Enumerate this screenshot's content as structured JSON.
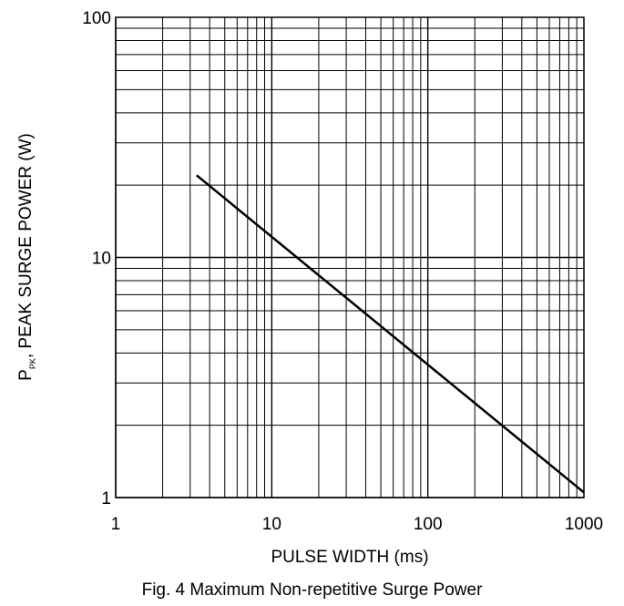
{
  "chart_data": {
    "type": "line",
    "title": "",
    "caption": "Fig. 4 Maximum Non-repetitive Surge Power",
    "xlabel": "PULSE WIDTH (ms)",
    "ylabel_main": "P",
    "ylabel_sub": "PK",
    "ylabel_rest": ", PEAK SURGE POWER (W)",
    "xscale": "log",
    "yscale": "log",
    "xlim": [
      1,
      1000
    ],
    "ylim": [
      1,
      100
    ],
    "grid": true,
    "x_ticks": [
      {
        "value": 1,
        "label": "1"
      },
      {
        "value": 10,
        "label": "10"
      },
      {
        "value": 100,
        "label": "100"
      },
      {
        "value": 1000,
        "label": "1000"
      }
    ],
    "y_ticks": [
      {
        "value": 1,
        "label": "1"
      },
      {
        "value": 10,
        "label": "10"
      },
      {
        "value": 100,
        "label": "100"
      }
    ],
    "series": [
      {
        "x": [
          3.3,
          1000
        ],
        "y": [
          22,
          1.05
        ],
        "color": "#000000"
      }
    ]
  }
}
